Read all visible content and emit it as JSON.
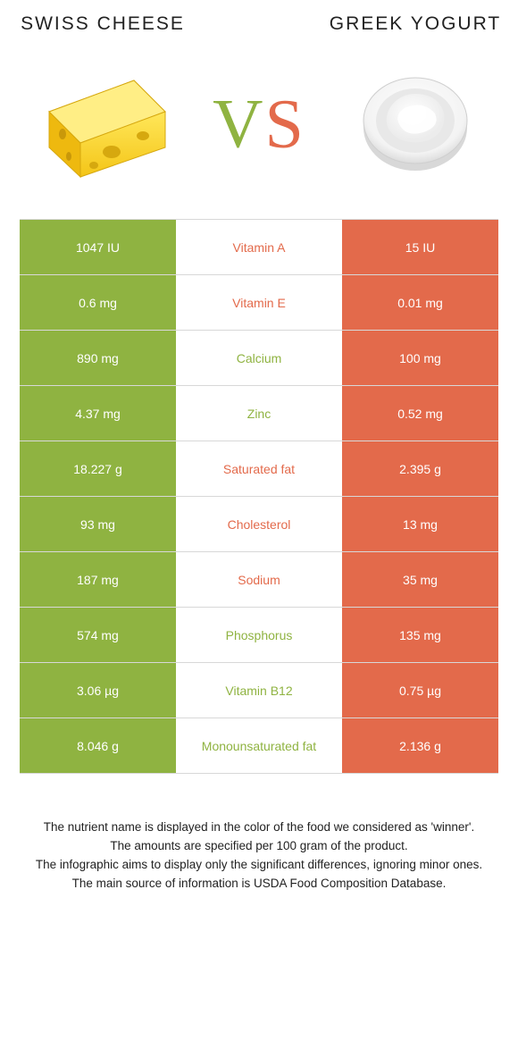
{
  "colors": {
    "left_food": "#8fb341",
    "right_food": "#e36a4b",
    "row_border": "#d8d8d8",
    "text": "#222222",
    "white": "#ffffff",
    "vs_v": "#8fb341",
    "vs_s": "#e36a4b"
  },
  "left_food": {
    "title": "SWISS CHEESE"
  },
  "right_food": {
    "title": "GREEK YOGURT"
  },
  "vs": {
    "v": "V",
    "s": "S"
  },
  "rows": [
    {
      "nutrient": "Vitamin A",
      "left": "1047 IU",
      "right": "15 IU",
      "winner": "right"
    },
    {
      "nutrient": "Vitamin E",
      "left": "0.6 mg",
      "right": "0.01 mg",
      "winner": "right"
    },
    {
      "nutrient": "Calcium",
      "left": "890 mg",
      "right": "100 mg",
      "winner": "left"
    },
    {
      "nutrient": "Zinc",
      "left": "4.37 mg",
      "right": "0.52 mg",
      "winner": "left"
    },
    {
      "nutrient": "Saturated fat",
      "left": "18.227 g",
      "right": "2.395 g",
      "winner": "right"
    },
    {
      "nutrient": "Cholesterol",
      "left": "93 mg",
      "right": "13 mg",
      "winner": "right"
    },
    {
      "nutrient": "Sodium",
      "left": "187 mg",
      "right": "35 mg",
      "winner": "right"
    },
    {
      "nutrient": "Phosphorus",
      "left": "574 mg",
      "right": "135 mg",
      "winner": "left"
    },
    {
      "nutrient": "Vitamin B12",
      "left": "3.06 µg",
      "right": "0.75 µg",
      "winner": "left"
    },
    {
      "nutrient": "Monounsaturated fat",
      "left": "8.046 g",
      "right": "2.136 g",
      "winner": "left"
    }
  ],
  "footer": {
    "l1": "The nutrient name is displayed in the color of the food we considered as 'winner'.",
    "l2": "The amounts are specified per 100 gram of the product.",
    "l3": "The infographic aims to display only the significant differences, ignoring minor ones.",
    "l4": "The main source of information is USDA Food Composition Database."
  }
}
